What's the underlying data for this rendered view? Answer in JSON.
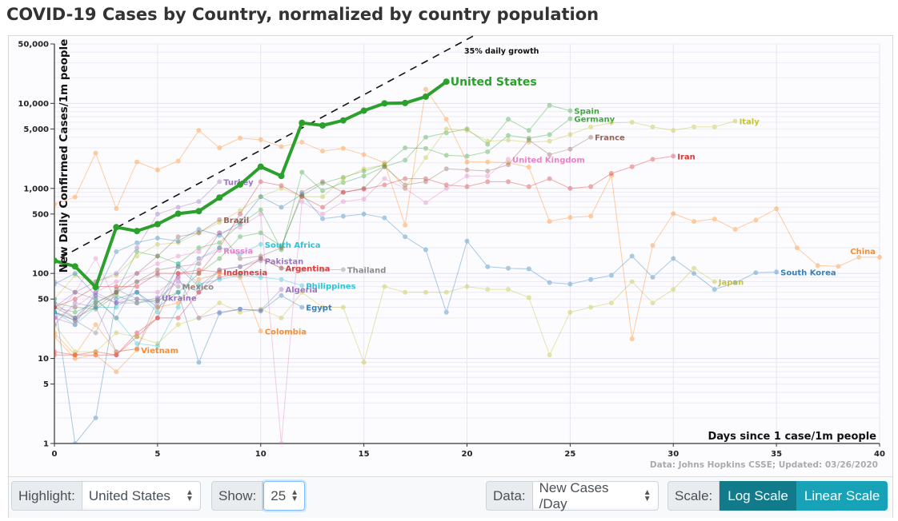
{
  "title": "COVID-19 Cases by Country, normalized by country population",
  "controls": {
    "highlight_label": "Highlight:",
    "highlight_value": "United States",
    "show_label": "Show:",
    "show_value": "25",
    "data_label": "Data:",
    "data_value": "New Cases /Day",
    "scale_label": "Scale:",
    "log_button": "Log Scale",
    "linear_button": "Linear Scale",
    "active_scale": "log"
  },
  "chart_data": {
    "type": "line",
    "title": "COVID-19 Cases by Country, normalized by country population",
    "xlabel": "Days since 1 case/1m people",
    "ylabel": "New Daily Confirmed Cases/1m people",
    "xlim": [
      0,
      40
    ],
    "ylim": [
      1,
      50000
    ],
    "yscale": "log",
    "x_ticks": [
      "0",
      "5",
      "10",
      "15",
      "20",
      "25",
      "30",
      "35",
      "40"
    ],
    "y_ticks": [
      "1",
      "5",
      "10",
      "50",
      "100",
      "500",
      "1,000",
      "5,000",
      "10,000",
      "50,000"
    ],
    "grid": true,
    "source_note": "Data: Johns Hopkins CSSE; Updated: 03/26/2020",
    "reference_line": {
      "label": "35% daily growth",
      "growth_rate": 0.35,
      "start_value": 140
    },
    "highlight": "United States",
    "series": [
      {
        "name": "United States",
        "color": "#2ca02c",
        "values": [
          141,
          121,
          69,
          350,
          315,
          380,
          505,
          540,
          780,
          1110,
          1800,
          1400,
          5900,
          5500,
          6300,
          8200,
          10000,
          10100,
          12000,
          18000
        ]
      },
      {
        "name": "China",
        "color": "#ff7f0e",
        "values": [
          650,
          790,
          2600,
          580,
          2050,
          1650,
          2100,
          4800,
          3000,
          3900,
          3750,
          3100,
          3500,
          2750,
          2950,
          2500,
          2000,
          370,
          14700,
          6500,
          2050,
          2050,
          2000,
          1780,
          410,
          455,
          470,
          1420,
          17,
          213,
          505,
          410,
          435,
          330,
          425,
          575,
          200,
          124,
          121,
          155,
          155
        ]
      },
      {
        "name": "Spain",
        "color": "#2ca02c",
        "values": [
          40,
          35,
          45,
          60,
          180,
          160,
          130,
          200,
          230,
          380,
          560,
          190,
          1550,
          940,
          1170,
          1400,
          1800,
          2150,
          4000,
          4500,
          5000,
          3300,
          6500,
          4800,
          9500,
          8200
        ]
      },
      {
        "name": "Germany",
        "color": "#2ca02c",
        "values": [
          45,
          40,
          38,
          55,
          45,
          48,
          60,
          100,
          150,
          270,
          300,
          210,
          820,
          1150,
          1350,
          1600,
          1900,
          3000,
          2950,
          2450,
          2400,
          2700,
          4200,
          3900,
          4300,
          6600
        ]
      },
      {
        "name": "Italy",
        "color": "#bcbd22",
        "values": [
          50,
          95,
          80,
          95,
          160,
          220,
          230,
          300,
          400,
          550,
          800,
          1000,
          800,
          800,
          1300,
          1700,
          1900,
          1000,
          2300,
          5000,
          4800,
          3600,
          3700,
          3500,
          3600,
          4300,
          5300,
          5900,
          6000,
          5300,
          4800,
          5300,
          5300,
          6200
        ]
      },
      {
        "name": "France",
        "color": "#8c564b",
        "values": [
          35,
          28,
          45,
          60,
          80,
          110,
          120,
          130,
          300,
          150,
          160,
          200,
          900,
          1200,
          900,
          1000,
          1800,
          1100,
          1200,
          1700,
          1650,
          1600,
          1900,
          3700,
          2500,
          2900,
          4000
        ]
      },
      {
        "name": "United Kingdom",
        "color": "#e377c2",
        "values": [
          30,
          40,
          60,
          80,
          100,
          130,
          160,
          180,
          300,
          350,
          500,
          1,
          700,
          500,
          700,
          750,
          1300,
          1000,
          680,
          1000,
          1400,
          1400,
          2200
        ]
      },
      {
        "name": "Iran",
        "color": "#d62728",
        "values": [
          12,
          11,
          12,
          11,
          18,
          30,
          100,
          100,
          200,
          500,
          1200,
          1080,
          800,
          600,
          900,
          980,
          1100,
          1300,
          1300,
          1100,
          1050,
          1200,
          1200,
          1050,
          1300,
          1000,
          1050,
          1500,
          1800,
          2200,
          2400
        ]
      },
      {
        "name": "South Korea",
        "color": "#1f77b4",
        "values": [
          75,
          100,
          55,
          180,
          230,
          260,
          240,
          330,
          280,
          400,
          800,
          600,
          850,
          440,
          470,
          500,
          450,
          270,
          190,
          35,
          240,
          120,
          115,
          113,
          78,
          75,
          85,
          95,
          160,
          90,
          150,
          100,
          65,
          78,
          102,
          104
        ]
      },
      {
        "name": "Japan",
        "color": "#bcbd22",
        "values": [
          25,
          12,
          12,
          20,
          18,
          15,
          25,
          30,
          45,
          35,
          38,
          30,
          60,
          40,
          40,
          9,
          70,
          60,
          60,
          60,
          70,
          65,
          65,
          52,
          11,
          35,
          40,
          45,
          80,
          45,
          65,
          115,
          80
        ]
      },
      {
        "name": "Turkey",
        "color": "#9467bd",
        "values": [
          40,
          60,
          80,
          100,
          200,
          500,
          600,
          700,
          1200
        ]
      },
      {
        "name": "Brazil",
        "color": "#8c564b",
        "values": [
          40,
          30,
          40,
          60,
          100,
          160,
          270,
          300,
          430
        ]
      },
      {
        "name": "South Africa",
        "color": "#17becf",
        "values": [
          35,
          30,
          50,
          30,
          15,
          14,
          40,
          150,
          200,
          170,
          220
        ]
      },
      {
        "name": "Russia",
        "color": "#e377c2",
        "values": [
          30,
          60,
          150,
          45,
          60,
          60,
          90,
          150,
          186
        ]
      },
      {
        "name": "Pakistan",
        "color": "#9467bd",
        "values": [
          25,
          45,
          40,
          12,
          13,
          50,
          80,
          60,
          110,
          120,
          141
        ]
      },
      {
        "name": "Argentina",
        "color": "#d62728",
        "values": [
          11,
          11,
          11,
          11,
          20,
          30,
          30,
          60,
          90,
          100,
          150,
          116
        ]
      },
      {
        "name": "Thailand",
        "color": "#7f7f7f",
        "values": [
          35,
          28,
          20,
          65,
          50,
          48,
          120,
          70,
          110,
          120,
          150,
          115,
          110,
          110,
          111
        ]
      },
      {
        "name": "Indonesia",
        "color": "#d62728",
        "values": [
          40,
          50,
          70,
          70,
          70,
          100,
          100,
          110,
          104
        ]
      },
      {
        "name": "Mexico",
        "color": "#7f7f7f",
        "values": [
          80,
          60,
          50,
          30,
          80,
          95,
          70
        ]
      },
      {
        "name": "Philippines",
        "color": "#17becf",
        "values": [
          35,
          25,
          40,
          40,
          60,
          35,
          130,
          75,
          85,
          95,
          90,
          85,
          72
        ]
      },
      {
        "name": "Algeria",
        "color": "#9467bd",
        "values": [
          30,
          25,
          60,
          45,
          50,
          45,
          90,
          30,
          35,
          38,
          37,
          65
        ]
      },
      {
        "name": "Ukraine",
        "color": "#9467bd",
        "values": [
          45,
          30,
          55,
          45,
          45,
          52
        ]
      },
      {
        "name": "Egypt",
        "color": "#1f77b4",
        "values": [
          50,
          1,
          2,
          50,
          60,
          40,
          60,
          9,
          34,
          38,
          36,
          55,
          40
        ]
      },
      {
        "name": "Colombia",
        "color": "#ff7f0e",
        "values": [
          20,
          11,
          25,
          12,
          13,
          40,
          45,
          85,
          100,
          90,
          21
        ]
      },
      {
        "name": "Vietnam",
        "color": "#ff7f0e",
        "values": [
          18,
          10,
          11,
          7,
          12.6
        ]
      }
    ]
  }
}
